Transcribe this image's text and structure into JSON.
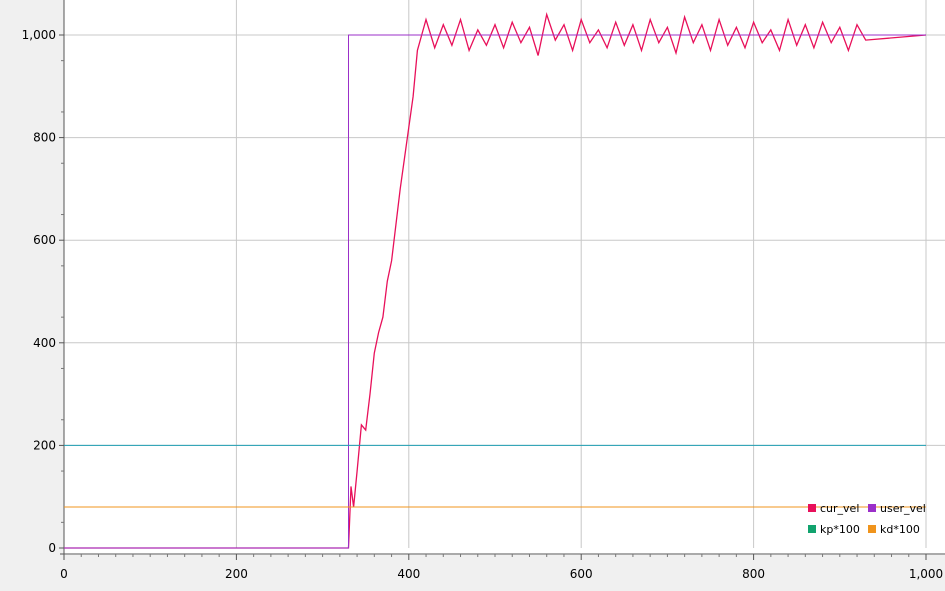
{
  "chart_data": {
    "type": "line",
    "xlim": [
      0,
      1000
    ],
    "ylim": [
      0,
      1000
    ],
    "x_ticks": [
      0,
      200,
      400,
      600,
      800,
      1000
    ],
    "x_tick_labels": [
      "0",
      "200",
      "400",
      "600",
      "800",
      "1,000"
    ],
    "y_ticks": [
      0,
      200,
      400,
      600,
      800,
      1000
    ],
    "y_tick_labels": [
      "0",
      "200",
      "400",
      "600",
      "800",
      "1,000"
    ],
    "grid": true,
    "legend_position": "bottom-right",
    "series": [
      {
        "name": "cur_vel",
        "color": "#e8105a",
        "points": [
          [
            0,
            0
          ],
          [
            100,
            0
          ],
          [
            200,
            0
          ],
          [
            300,
            0
          ],
          [
            330,
            0
          ],
          [
            333,
            120
          ],
          [
            336,
            80
          ],
          [
            340,
            150
          ],
          [
            345,
            240
          ],
          [
            350,
            230
          ],
          [
            355,
            300
          ],
          [
            360,
            380
          ],
          [
            365,
            420
          ],
          [
            370,
            450
          ],
          [
            375,
            520
          ],
          [
            380,
            560
          ],
          [
            385,
            630
          ],
          [
            390,
            700
          ],
          [
            395,
            760
          ],
          [
            400,
            820
          ],
          [
            405,
            880
          ],
          [
            410,
            970
          ],
          [
            415,
            1000
          ],
          [
            420,
            1030
          ],
          [
            430,
            975
          ],
          [
            440,
            1020
          ],
          [
            450,
            980
          ],
          [
            460,
            1030
          ],
          [
            470,
            970
          ],
          [
            480,
            1010
          ],
          [
            490,
            980
          ],
          [
            500,
            1020
          ],
          [
            510,
            975
          ],
          [
            520,
            1025
          ],
          [
            530,
            985
          ],
          [
            540,
            1015
          ],
          [
            550,
            960
          ],
          [
            560,
            1040
          ],
          [
            570,
            990
          ],
          [
            580,
            1020
          ],
          [
            590,
            970
          ],
          [
            600,
            1030
          ],
          [
            610,
            985
          ],
          [
            620,
            1010
          ],
          [
            630,
            975
          ],
          [
            640,
            1025
          ],
          [
            650,
            980
          ],
          [
            660,
            1020
          ],
          [
            670,
            970
          ],
          [
            680,
            1030
          ],
          [
            690,
            985
          ],
          [
            700,
            1015
          ],
          [
            710,
            965
          ],
          [
            720,
            1035
          ],
          [
            730,
            985
          ],
          [
            740,
            1020
          ],
          [
            750,
            970
          ],
          [
            760,
            1030
          ],
          [
            770,
            980
          ],
          [
            780,
            1015
          ],
          [
            790,
            975
          ],
          [
            800,
            1025
          ],
          [
            810,
            985
          ],
          [
            820,
            1010
          ],
          [
            830,
            970
          ],
          [
            840,
            1030
          ],
          [
            850,
            980
          ],
          [
            860,
            1020
          ],
          [
            870,
            975
          ],
          [
            880,
            1025
          ],
          [
            890,
            985
          ],
          [
            900,
            1015
          ],
          [
            910,
            970
          ],
          [
            920,
            1020
          ],
          [
            930,
            990
          ],
          [
            1000,
            1000
          ]
        ]
      },
      {
        "name": "user_vel",
        "color": "#9b2fc9",
        "points": [
          [
            0,
            0
          ],
          [
            330,
            0
          ],
          [
            330,
            1000
          ],
          [
            1000,
            1000
          ]
        ]
      },
      {
        "name": "kp*100",
        "color": "#1f9fb4",
        "legend_color": "#11a36e",
        "points": [
          [
            0,
            200
          ],
          [
            1000,
            200
          ]
        ]
      },
      {
        "name": "kd*100",
        "color": "#f0941c",
        "points": [
          [
            0,
            80
          ],
          [
            1000,
            80
          ]
        ]
      }
    ]
  }
}
